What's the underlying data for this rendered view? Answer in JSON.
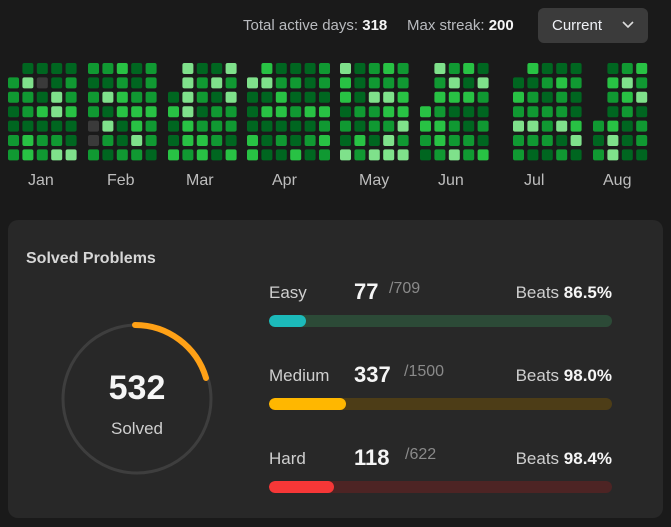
{
  "header": {
    "active_label": "Total active days:",
    "active_value": "318",
    "streak_label": "Max streak:",
    "streak_value": "200",
    "dropdown_label": "Current"
  },
  "months": [
    "Jan",
    "Feb",
    "Mar",
    "Apr",
    "May",
    "Jun",
    "Jul",
    "Aug"
  ],
  "colors": {
    "heat": [
      "#2b2b2b",
      "#006620",
      "#109932",
      "#28c244",
      "#7fe18b"
    ],
    "easy": "#1cbaba",
    "easy_track": "#2c4a37",
    "medium": "#ffb700",
    "medium_track": "#4d3d17",
    "hard": "#f63737",
    "hard_track": "#4d2424",
    "ring": "#ffa116",
    "ring_track": "#3e3e3e"
  },
  "solved": {
    "title": "Solved Problems",
    "total": "532",
    "label": "Solved",
    "difficulties": [
      {
        "name": "Easy",
        "solved": "77",
        "total": "/709",
        "beats_label": "Beats",
        "beats": "86.5%",
        "fraction": 0.109
      },
      {
        "name": "Medium",
        "solved": "337",
        "total": "/1500",
        "beats_label": "Beats",
        "beats": "98.0%",
        "fraction": 0.225
      },
      {
        "name": "Hard",
        "solved": "118",
        "total": "/622",
        "beats_label": "Beats",
        "beats": "98.4%",
        "fraction": 0.19
      }
    ]
  }
}
